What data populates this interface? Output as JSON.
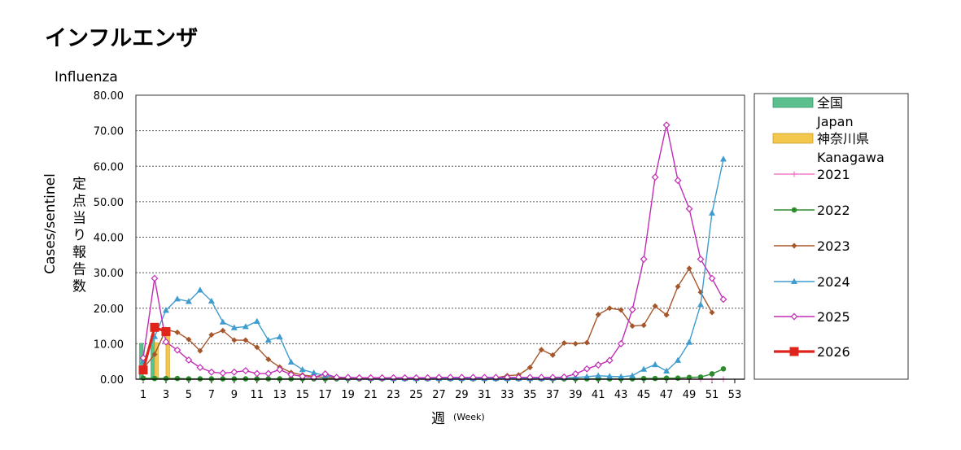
{
  "chart_data": {
    "type": "line",
    "title": "インフルエンザ",
    "subtitle": "Influenza",
    "ylabel_en": "Cases/sentinel",
    "ylabel_ja": "定点当り報告数",
    "xlabel_ja": "週",
    "xlabel_en": "(Week)",
    "ylim": [
      0,
      80
    ],
    "xlim": [
      0,
      53
    ],
    "y_ticks": [
      "0.00",
      "10.00",
      "20.00",
      "30.00",
      "40.00",
      "50.00",
      "60.00",
      "70.00",
      "80.00"
    ],
    "x_ticks": [
      "1",
      "3",
      "5",
      "7",
      "9",
      "11",
      "13",
      "15",
      "17",
      "19",
      "21",
      "23",
      "25",
      "27",
      "29",
      "31",
      "33",
      "35",
      "37",
      "39",
      "41",
      "43",
      "45",
      "47",
      "49",
      "51",
      "53"
    ],
    "grid": true,
    "legend_position": "right",
    "bars": [
      {
        "name": "全国",
        "name_en": "Japan",
        "color": "#5cc08e",
        "x": [
          1,
          2,
          3
        ],
        "values": [
          10.1,
          12.2,
          0
        ]
      },
      {
        "name": "神奈川県",
        "name_en": "Kanagawa",
        "color": "#f3c64c",
        "x": [
          1,
          2,
          3
        ],
        "values": [
          0,
          10.3,
          12.5
        ]
      }
    ],
    "series": [
      {
        "name": "2021",
        "color": "#f07ac8",
        "marker": "plus",
        "x": [
          1,
          50,
          51,
          52
        ],
        "values": [
          0,
          0,
          0,
          0
        ]
      },
      {
        "name": "2022",
        "color": "#2e8b2e",
        "marker": "circle",
        "x": [
          1,
          2,
          3,
          4,
          5,
          6,
          7,
          8,
          9,
          10,
          11,
          12,
          13,
          14,
          15,
          16,
          17,
          18,
          19,
          20,
          21,
          22,
          23,
          24,
          25,
          26,
          27,
          28,
          29,
          30,
          31,
          32,
          33,
          34,
          35,
          36,
          37,
          38,
          39,
          40,
          41,
          42,
          43,
          44,
          45,
          46,
          47,
          48,
          49,
          50,
          51,
          52
        ],
        "values": [
          0.3,
          0.2,
          0.2,
          0.2,
          0.1,
          0.1,
          0.1,
          0.1,
          0.1,
          0.1,
          0.1,
          0.1,
          0.1,
          0.1,
          0.1,
          0.1,
          0.1,
          0.1,
          0.1,
          0.1,
          0.1,
          0.1,
          0.1,
          0.1,
          0.1,
          0.1,
          0.1,
          0.1,
          0.1,
          0.1,
          0.1,
          0.1,
          0.1,
          0.1,
          0.1,
          0.1,
          0.1,
          0.1,
          0.1,
          0.1,
          0.1,
          0.1,
          0.1,
          0.1,
          0.2,
          0.2,
          0.3,
          0.3,
          0.5,
          0.6,
          1.5,
          2.9
        ]
      },
      {
        "name": "2023",
        "color": "#a5562a",
        "marker": "diamond",
        "x": [
          1,
          2,
          3,
          4,
          5,
          6,
          7,
          8,
          9,
          10,
          11,
          12,
          13,
          14,
          15,
          16,
          17,
          18,
          19,
          20,
          21,
          22,
          23,
          24,
          25,
          26,
          27,
          28,
          29,
          30,
          31,
          32,
          33,
          34,
          35,
          36,
          37,
          38,
          39,
          40,
          41,
          42,
          43,
          44,
          45,
          46,
          47,
          48,
          49,
          50,
          51,
          52
        ],
        "values": [
          3.0,
          7.0,
          14.0,
          13.2,
          11.2,
          8.0,
          12.5,
          13.7,
          11.0,
          11.0,
          9.0,
          5.6,
          3.4,
          1.9,
          1.2,
          0.8,
          0.5,
          0.4,
          0.3,
          0.3,
          0.3,
          0.2,
          0.2,
          0.2,
          0.2,
          0.3,
          0.3,
          0.3,
          0.3,
          0.3,
          0.3,
          0.4,
          1.0,
          1.2,
          3.3,
          8.3,
          6.8,
          10.2,
          10.0,
          10.3,
          18.2,
          20.0,
          19.5,
          15.0,
          15.2,
          20.6,
          18.1,
          26.1,
          31.2,
          24.5,
          18.8,
          null
        ]
      },
      {
        "name": "2024",
        "color": "#3f9ccf",
        "marker": "triangle",
        "x": [
          1,
          2,
          3,
          4,
          5,
          6,
          7,
          8,
          9,
          10,
          11,
          12,
          13,
          14,
          15,
          16,
          17,
          18,
          19,
          20,
          21,
          22,
          23,
          24,
          25,
          26,
          27,
          28,
          29,
          30,
          31,
          32,
          33,
          34,
          35,
          36,
          37,
          38,
          39,
          40,
          41,
          42,
          43,
          44,
          45,
          46,
          47,
          48,
          49,
          50,
          51,
          52
        ],
        "values": [
          5.0,
          12.0,
          19.4,
          22.6,
          21.9,
          25.1,
          22.0,
          16.1,
          14.5,
          14.8,
          16.3,
          11.0,
          11.9,
          4.8,
          2.7,
          1.8,
          1.0,
          0.6,
          0.4,
          0.4,
          0.3,
          0.3,
          0.2,
          0.2,
          0.2,
          0.2,
          0.2,
          0.2,
          0.2,
          0.2,
          0.2,
          0.2,
          0.2,
          0.2,
          0.2,
          0.2,
          0.3,
          0.4,
          0.5,
          0.7,
          1.0,
          0.8,
          0.7,
          1.0,
          2.8,
          4.1,
          2.3,
          5.3,
          10.4,
          21.0,
          46.8,
          62.0
        ]
      },
      {
        "name": "2025",
        "color": "#c22db5",
        "marker": "open-diamond",
        "x": [
          1,
          2,
          3,
          4,
          5,
          6,
          7,
          8,
          9,
          10,
          11,
          12,
          13,
          14,
          15,
          16,
          17,
          18,
          19,
          20,
          21,
          22,
          23,
          24,
          25,
          26,
          27,
          28,
          29,
          30,
          31,
          32,
          33,
          34,
          35,
          36,
          37,
          38,
          39,
          40,
          41,
          42,
          43,
          44,
          45,
          46,
          47,
          48,
          49,
          50,
          51,
          52
        ],
        "values": [
          6.0,
          28.4,
          10.5,
          8.2,
          5.4,
          3.3,
          2.0,
          1.7,
          2.0,
          2.4,
          1.6,
          1.6,
          2.7,
          1.3,
          0.8,
          0.5,
          1.5,
          0.5,
          0.5,
          0.4,
          0.4,
          0.4,
          0.4,
          0.4,
          0.4,
          0.4,
          0.5,
          0.5,
          0.5,
          0.5,
          0.5,
          0.5,
          0.5,
          0.5,
          0.5,
          0.5,
          0.5,
          0.6,
          1.5,
          2.9,
          4.0,
          5.3,
          10.0,
          19.6,
          33.8,
          56.9,
          71.6,
          56.0,
          48.0,
          33.8,
          28.4,
          22.5
        ]
      },
      {
        "name": "2026",
        "color": "#e0241c",
        "marker": "square",
        "x": [
          1,
          2,
          3
        ],
        "values": [
          2.6,
          14.6,
          13.4
        ]
      }
    ]
  }
}
